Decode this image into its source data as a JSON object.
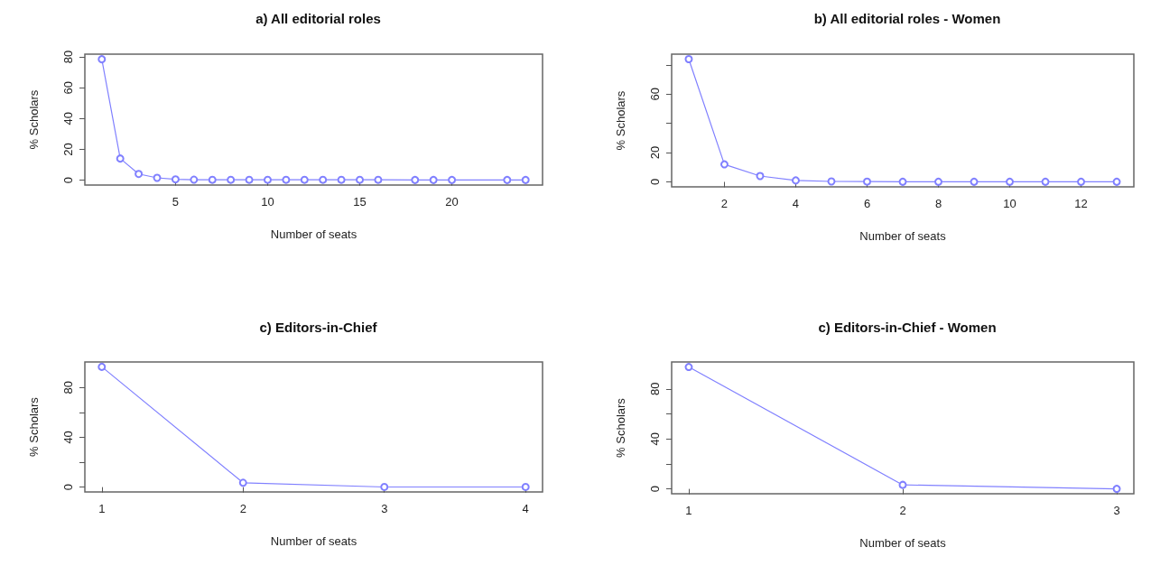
{
  "chart_data": [
    {
      "type": "line",
      "title": "a) All editorial roles",
      "xlabel": "Number of seats",
      "ylabel": "% Scholars",
      "x": [
        1,
        2,
        3,
        4,
        5,
        6,
        7,
        8,
        9,
        10,
        11,
        12,
        13,
        14,
        15,
        16,
        18,
        19,
        20,
        23,
        24
      ],
      "series": [
        {
          "color": "#8080ff",
          "values": [
            78.5,
            14,
            4,
            1.5,
            0.5,
            0.3,
            0.2,
            0.2,
            0.2,
            0.2,
            0.2,
            0.2,
            0.2,
            0.2,
            0.2,
            0.2,
            0.1,
            0.1,
            0.1,
            0.1,
            0.1
          ]
        }
      ],
      "xlim": [
        0.08,
        24.92
      ],
      "xticks": [
        5,
        10,
        15,
        20
      ],
      "ylim": [
        -3.2,
        81.8
      ],
      "yticks": [
        0,
        20,
        40,
        60,
        80
      ],
      "marker": "circle",
      "line_style": "solid",
      "grid": false
    },
    {
      "type": "line",
      "title": "b) All editorial roles - Women",
      "xlabel": "Number of seats",
      "ylabel": "% Scholars",
      "x": [
        1,
        2,
        3,
        4,
        5,
        6,
        7,
        8,
        9,
        10,
        11,
        12,
        13
      ],
      "series": [
        {
          "color": "#8080ff",
          "values": [
            84,
            12,
            4,
            1,
            0.3,
            0.2,
            0.1,
            0.1,
            0.1,
            0.1,
            0.1,
            0.1,
            0.1
          ]
        }
      ],
      "xlim": [
        0.52,
        13.48
      ],
      "xticks": [
        2,
        4,
        6,
        8,
        10,
        12
      ],
      "ylim": [
        -3.4,
        87.4
      ],
      "yticks": [
        0,
        20,
        {
          "value": 40,
          "label": null
        },
        60,
        {
          "value": 80,
          "label": null
        }
      ],
      "marker": "circle",
      "line_style": "solid",
      "grid": false
    },
    {
      "type": "line",
      "title": "c) Editors-in-Chief",
      "xlabel": "Number of seats",
      "ylabel": "% Scholars",
      "x": [
        1,
        2,
        3,
        4
      ],
      "series": [
        {
          "color": "#8080ff",
          "values": [
            96.5,
            3.5,
            0.1,
            0.1
          ]
        }
      ],
      "xlim": [
        0.88,
        4.12
      ],
      "xticks": [
        1,
        2,
        3,
        4
      ],
      "ylim": [
        -3.9,
        100.4
      ],
      "yticks": [
        0,
        {
          "value": 20,
          "label": null
        },
        40,
        {
          "value": 60,
          "label": null
        },
        80
      ],
      "marker": "circle",
      "line_style": "solid",
      "grid": false
    },
    {
      "type": "line",
      "title": "c) Editors-in-Chief - Women",
      "xlabel": "Number of seats",
      "ylabel": "% Scholars",
      "x": [
        1,
        2,
        3
      ],
      "series": [
        {
          "color": "#8080ff",
          "values": [
            97.5,
            3.2,
            0
          ]
        }
      ],
      "xlim": [
        0.92,
        3.08
      ],
      "xticks": [
        1,
        2,
        3
      ],
      "ylim": [
        -3.9,
        101.5
      ],
      "yticks": [
        0,
        {
          "value": 20,
          "label": null
        },
        40,
        {
          "value": 60,
          "label": null
        },
        80
      ],
      "marker": "circle",
      "line_style": "solid",
      "grid": false
    }
  ]
}
